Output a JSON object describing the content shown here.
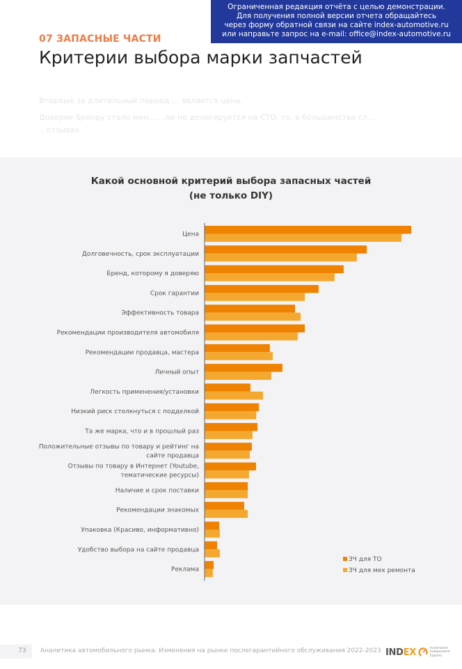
{
  "notice": {
    "lines": [
      "Ограниченная редакция отчёта с целью демонстрации.",
      "Для получения полной версии отчета обращайтесь",
      "через форму обратной связи на сайте index-automotive.ru",
      "или направьте запрос на e-mail: office@index-automotive.ru"
    ]
  },
  "header": {
    "section": "07 ЗАПАСНЫЕ ЧАСТИ",
    "title": "Критерии выбора марки запчастей"
  },
  "intro": {
    "p1": "Впервые за длительный период ... является цена.",
    "p2": "Доверие бренду стало мен... ...ли не делегируется на СТО, то, в большинстве сл... ...отзывах."
  },
  "chart_data": {
    "type": "bar",
    "orientation": "horizontal",
    "title": "Какой основной критерий выбора запасных частей",
    "subtitle": "(не только DIY)",
    "xlabel": "",
    "ylabel": "",
    "grid": false,
    "value_units": "relative (max = 100, no axis ticks shown)",
    "xlim": [
      0,
      100
    ],
    "legend_position": "bottom-right",
    "categories": [
      "Цена",
      "Долговечность, срок эксплуатации",
      "Бренд, которому я доверяю",
      "Срок гарантии",
      "Эффективность товара",
      "Рекомендации производителя автомобиля",
      "Рекомендации продавца, мастера",
      "Личный опыт",
      "Легкость применения/установки",
      "Низкий риск столкнуться с подделкой",
      "Та же марка, что и в прошлый раз",
      "Положительные отзывы по товару и рейтинг на сайте продавца",
      "Отзывы по товару в Интернет (Youtube, тематические ресурсы)",
      "Наличие и срок поставки",
      "Рекомендации знакомых",
      "Упаковка (Красиво, информативно)",
      "Удобство выбора на сайте продавца",
      "Реклама"
    ],
    "category_lines": [
      [
        "Цена"
      ],
      [
        "Долговечность, срок эксплуатации"
      ],
      [
        "Бренд, которому я доверяю"
      ],
      [
        "Срок гарантии"
      ],
      [
        "Эффективность товара"
      ],
      [
        "Рекомендации производителя автомобиля"
      ],
      [
        "Рекомендации продавца, мастера"
      ],
      [
        "Личный опыт"
      ],
      [
        "Легкость применения/установки"
      ],
      [
        "Низкий риск столкнуться с подделкой"
      ],
      [
        "Та же марка, что и в прошлый раз"
      ],
      [
        "Положительные отзывы по товару и рейтинг на",
        "сайте продавца"
      ],
      [
        "Отзывы по товару в Интернет (Youtube,",
        "тематические ресурсы)"
      ],
      [
        "Наличие и срок поставки"
      ],
      [
        "Рекомендации знакомых"
      ],
      [
        "Упаковка (Красиво, информативно)"
      ],
      [
        "Удобство выбора на сайте продавца"
      ],
      [
        "Реклама"
      ]
    ],
    "series": [
      {
        "name": "ЗЧ для ТО",
        "color": "#ef8200",
        "values": [
          100,
          78.5,
          67.3,
          55.2,
          43.8,
          48.5,
          31.6,
          37.7,
          22.2,
          26.3,
          25.6,
          22.9,
          24.9,
          20.9,
          19.2,
          7.1,
          6.1,
          4.4
        ]
      },
      {
        "name": "ЗЧ для мех ремонта",
        "color": "#f5a830",
        "values": [
          95.3,
          73.7,
          62.9,
          48.5,
          46.5,
          45.1,
          33.0,
          32.3,
          28.3,
          25.0,
          23.2,
          21.9,
          21.5,
          20.9,
          20.9,
          7.4,
          7.4,
          4.0
        ]
      }
    ]
  },
  "footer": {
    "page_number": "73",
    "text": "Аналитика автомобильного рынка. Изменения на рынке послегарантийного обслуживания 2022-2023",
    "logo": {
      "name": "INDEX",
      "sub_lines": [
        "Automotive",
        "Independent",
        "Experts"
      ],
      "accent": "#f39a1e"
    }
  },
  "colors": {
    "notice_bg": "#22399b",
    "section_accent": "#ef7b45",
    "panel_bg": "#f3f3f5"
  }
}
